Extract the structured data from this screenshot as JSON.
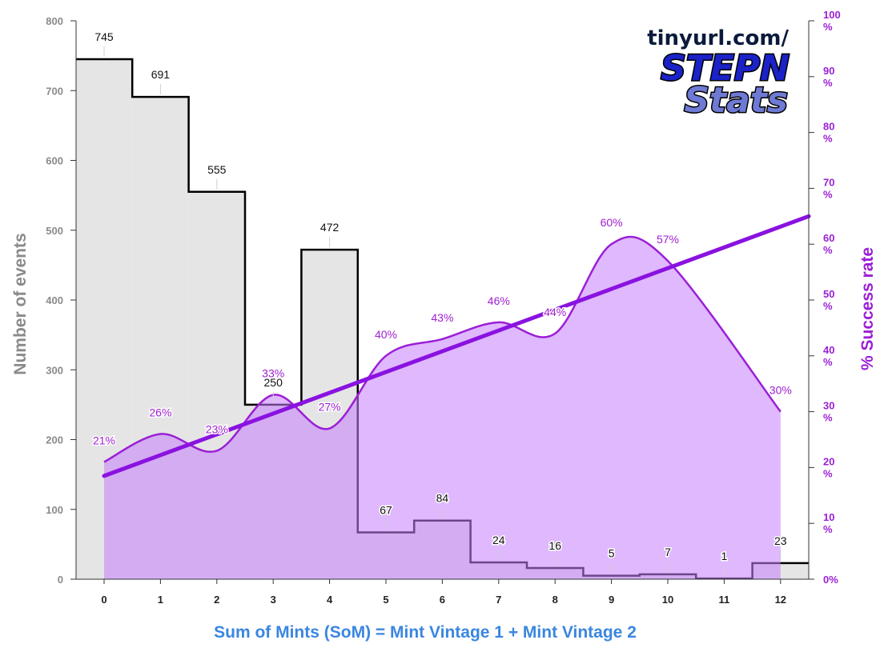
{
  "logo": {
    "url_text": "tinyurl.com/",
    "line1": "STEPN",
    "line2": "Stats"
  },
  "colors": {
    "bar_fill": "#e5e5e5",
    "bar_stroke": "#000000",
    "area_fill": "#c57dfb",
    "rate_line": "#9b1fd6",
    "trend_line": "#8a12e0",
    "x_title": "#3a86e0",
    "left_axis_text": "#8a8a8a"
  },
  "chart_data": {
    "type": "bar",
    "title": "",
    "xlabel": "Sum of Mints (SoM) = Mint Vintage 1 + Mint Vintage 2",
    "ylabel": "Number of events",
    "y2label": "% Success rate",
    "categories": [
      "0",
      "1",
      "2",
      "3",
      "4",
      "5",
      "6",
      "7",
      "8",
      "9",
      "10",
      "11",
      "12"
    ],
    "ylim": [
      0,
      800
    ],
    "y_ticks": [
      "0",
      "100",
      "200",
      "300",
      "400",
      "500",
      "600",
      "700",
      "800"
    ],
    "y2lim": [
      0,
      100
    ],
    "y2_ticks": [
      "0%",
      "10 %",
      "20 %",
      "30 %",
      "40 %",
      "50 %",
      "60 %",
      "70 %",
      "80 %",
      "90 %",
      "100 %"
    ],
    "series": [
      {
        "name": "Number of events",
        "type": "step-bar",
        "values": [
          745,
          691,
          555,
          250,
          472,
          67,
          84,
          24,
          16,
          5,
          7,
          1,
          23
        ],
        "labels": [
          "745",
          "691",
          "555",
          "250",
          "472",
          "67",
          "84",
          "24",
          "16",
          "5",
          "7",
          "1",
          "23"
        ]
      },
      {
        "name": "% Success rate",
        "type": "area",
        "axis": "right",
        "values": [
          21,
          26,
          23,
          33,
          27,
          40,
          43,
          46,
          44,
          60,
          57,
          null,
          30
        ],
        "labels": [
          "21%",
          "26%",
          "23%",
          "33%",
          "27%",
          "40%",
          "43%",
          "46%",
          "44%",
          "60%",
          "57%",
          "",
          "30%"
        ]
      },
      {
        "name": "Trend",
        "type": "line",
        "axis": "right",
        "start": [
          0,
          18.5
        ],
        "end": [
          12.5,
          65
        ]
      }
    ],
    "grid": false,
    "legend": "none"
  }
}
